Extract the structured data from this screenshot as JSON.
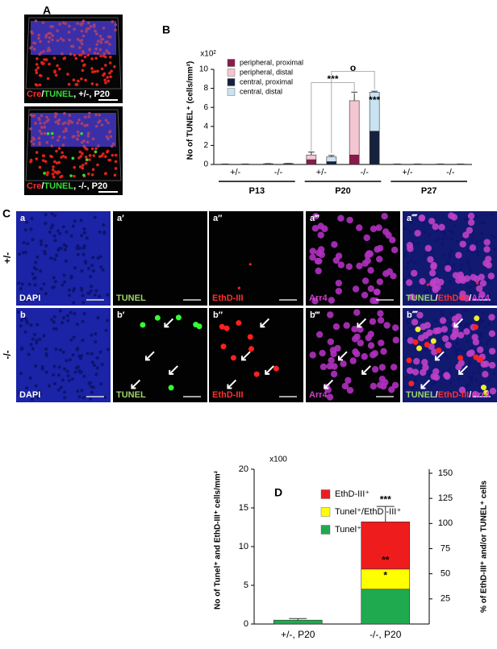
{
  "panel_labels": [
    "A",
    "B",
    "C",
    "D"
  ],
  "panel_a": {
    "images": [
      {
        "label_parts": [
          "Cre",
          "/",
          "TUNEL",
          ", +/-, P20"
        ]
      },
      {
        "label_parts": [
          "Cre",
          "/",
          "TUNEL",
          ", -/-, P20"
        ]
      }
    ]
  },
  "panel_c": {
    "row_labels": [
      "+/-",
      "-/-"
    ],
    "rows": [
      {
        "tiles": [
          {
            "letter": "a",
            "stain": [
              "DAPI"
            ]
          },
          {
            "letter": "a′",
            "stain": [
              "TUNEL"
            ]
          },
          {
            "letter": "a″",
            "stain": [
              "EthD-III"
            ]
          },
          {
            "letter": "a‴",
            "stain": [
              "Arr4"
            ]
          },
          {
            "letter": "a⁗",
            "stain": [
              "TUNEL",
              "/",
              "EthD-III",
              "/",
              "Arr4"
            ]
          }
        ]
      },
      {
        "tiles": [
          {
            "letter": "b",
            "stain": [
              "DAPI"
            ]
          },
          {
            "letter": "b′",
            "stain": [
              "TUNEL"
            ]
          },
          {
            "letter": "b″",
            "stain": [
              "EthD-III"
            ]
          },
          {
            "letter": "b‴",
            "stain": [
              "Arr4"
            ]
          },
          {
            "letter": "b⁗",
            "stain": [
              "TUNEL",
              "/",
              "EthD-III",
              "/",
              "Arr4"
            ]
          }
        ]
      }
    ]
  },
  "chart_data": [
    {
      "type": "bar",
      "stacked": true,
      "scale_label": "x10²",
      "y_label": "No of TUNEL⁺ (cells/mm²)",
      "categories": [
        "+/-",
        "-/-",
        "+/-",
        "-/-",
        "+/-",
        "-/-"
      ],
      "groups": [
        "P13",
        "P20",
        "P27"
      ],
      "series": [
        {
          "name": "peripheral, proximal",
          "color": "#8b1a4a",
          "stack": "peripheral",
          "values": [
            0.02,
            0.03,
            0.5,
            1.0,
            0.02,
            0.02
          ],
          "errors": [
            0.01,
            0.01,
            0.1,
            0.2,
            0.01,
            0.01
          ]
        },
        {
          "name": "peripheral, distal",
          "color": "#f4c6d2",
          "stack": "peripheral",
          "values": [
            0.02,
            0.05,
            0.5,
            5.7,
            0.02,
            0.02
          ],
          "errors": [
            0.01,
            0.01,
            0.3,
            0.9,
            0.01,
            0.01
          ]
        },
        {
          "name": "central, proximal",
          "color": "#16213e",
          "stack": "central",
          "values": [
            0.02,
            0.05,
            0.3,
            3.5,
            0.02,
            0.02
          ],
          "errors": [
            0.01,
            0.01,
            0.05,
            0.1,
            0.01,
            0.01
          ]
        },
        {
          "name": "central, distal",
          "color": "#c9e3f2",
          "stack": "central",
          "values": [
            0.02,
            0.05,
            0.5,
            4.1,
            0.02,
            0.02
          ],
          "errors": [
            0.01,
            0.01,
            0.15,
            0.1,
            0.01,
            0.01
          ]
        }
      ],
      "ylim": [
        0,
        10
      ],
      "yticks": [
        0,
        2,
        4,
        6,
        8,
        10
      ],
      "legend": "upper left",
      "annotations": [
        "***",
        "o",
        "***"
      ]
    },
    {
      "type": "bar",
      "stacked": true,
      "scale_label": "x100",
      "y_label": "No of Tunel⁺ and EthD-III⁺ cells/mm²",
      "y2_label": "% of EthD-III⁺ and/or TUNEL⁺ cells",
      "categories": [
        "+/-, P20",
        "-/-, P20"
      ],
      "series": [
        {
          "name": "Tunel⁺",
          "color": "#1faa4f",
          "values": [
            0.5,
            4.5
          ],
          "errors": [
            0.2,
            1.2
          ]
        },
        {
          "name": "Tunel⁺/EthD -III⁺",
          "color": "#ffff00",
          "values": [
            0,
            2.6
          ],
          "errors": [
            null,
            0.5
          ]
        },
        {
          "name": "EthD-III⁺",
          "color": "#ee1c1c",
          "values": [
            0,
            6.1
          ],
          "errors": [
            null,
            2.0
          ]
        }
      ],
      "ylim": [
        0,
        20
      ],
      "yticks": [
        0,
        5,
        10,
        15,
        20
      ],
      "y2lim": [
        0,
        154
      ],
      "y2ticks": [
        25,
        50,
        75,
        100,
        125,
        150
      ],
      "legend": "upper left",
      "annotations": [
        "*",
        "**",
        "***"
      ]
    }
  ]
}
